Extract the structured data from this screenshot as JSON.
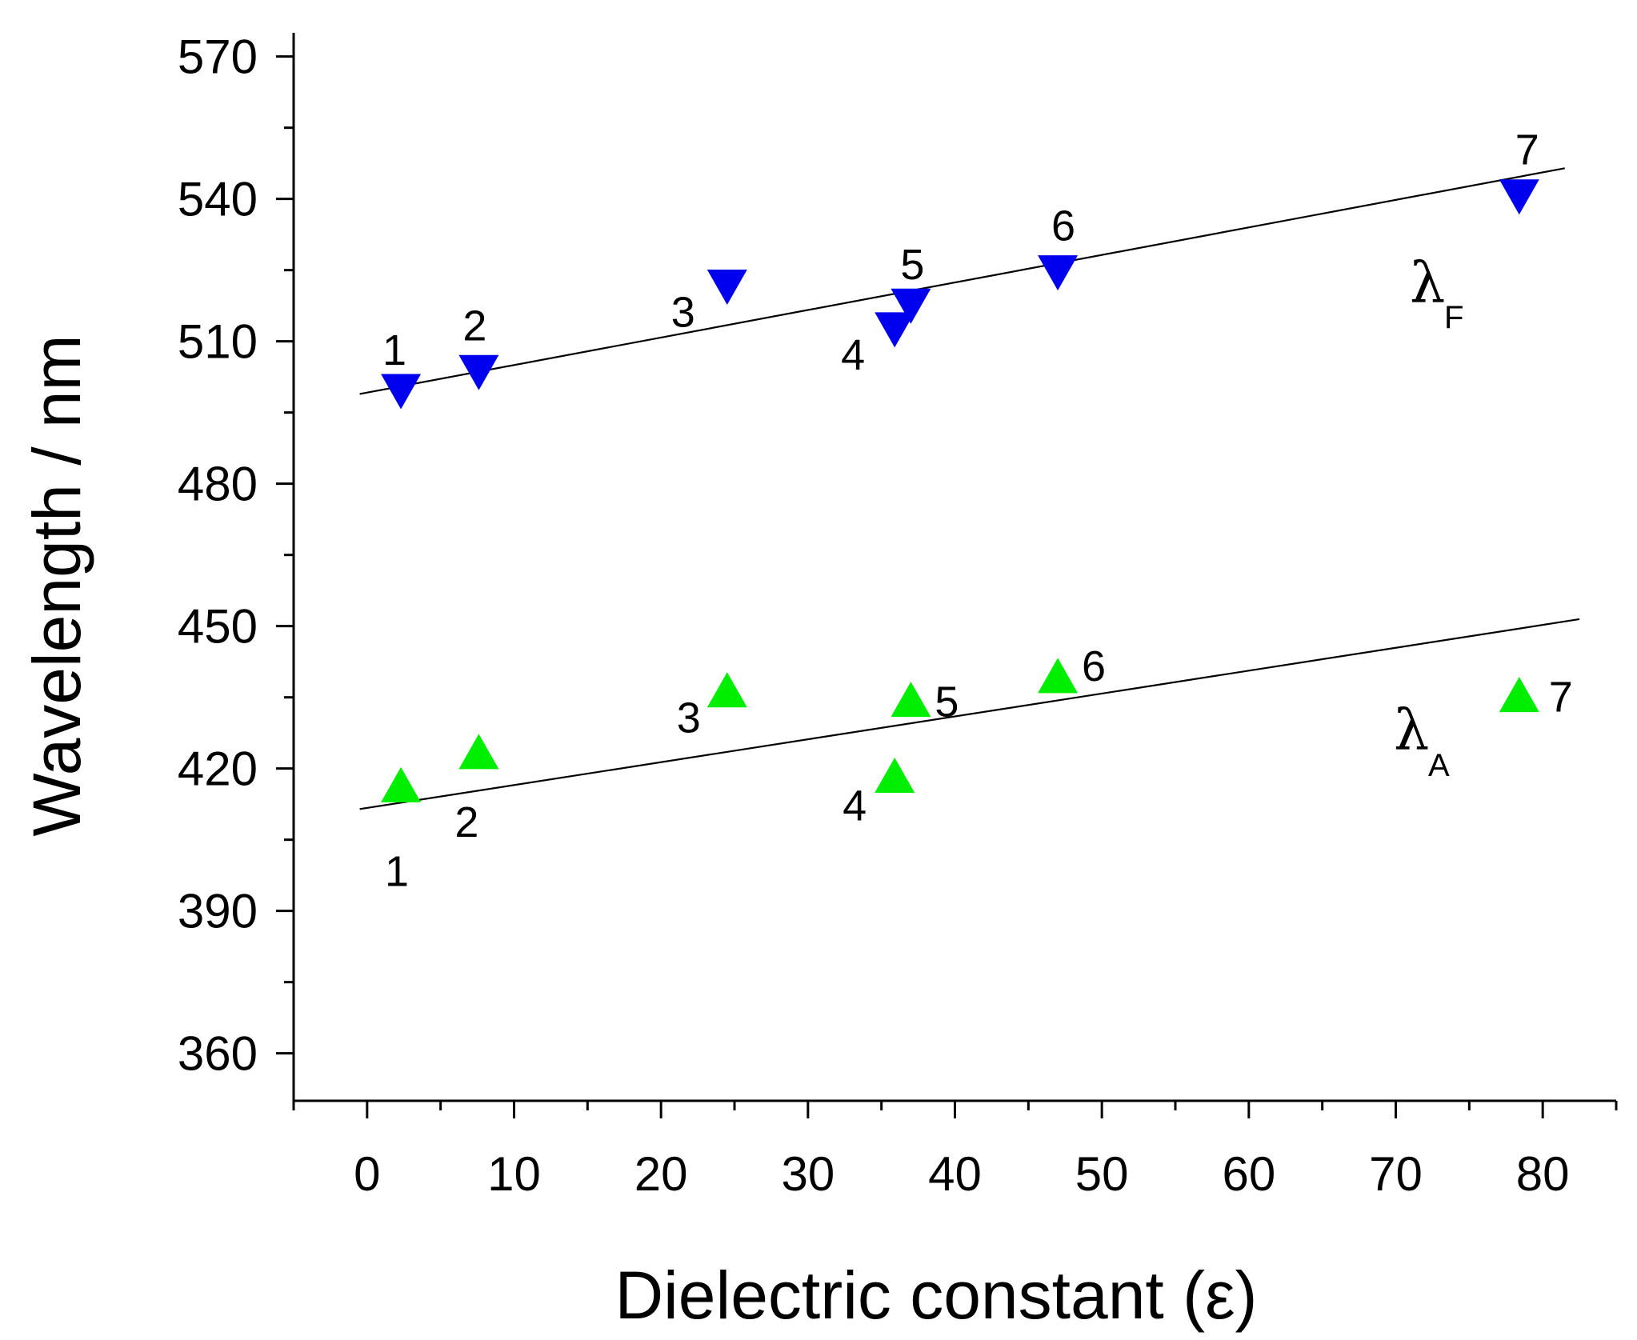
{
  "chart_data": {
    "type": "scatter",
    "title": "",
    "xlabel": "Dielectric constant (ε)",
    "ylabel": "Wavelength / nm",
    "xlim": [
      -5,
      85
    ],
    "ylim": [
      350,
      575
    ],
    "xticks": [
      0,
      10,
      20,
      30,
      40,
      50,
      60,
      70,
      80
    ],
    "xtick_labels": [
      "0",
      "10",
      "20",
      "30",
      "40",
      "50",
      "60",
      "70",
      "80"
    ],
    "yticks": [
      360,
      390,
      420,
      450,
      480,
      510,
      540,
      570
    ],
    "ytick_labels": [
      "360",
      "390",
      "420",
      "450",
      "480",
      "510",
      "540",
      "570"
    ],
    "grid": false,
    "series": [
      {
        "name": "λF",
        "symbol": "λ",
        "subscript": "F",
        "marker": "triangle-down",
        "color": "#0000ee",
        "x": [
          2.3,
          7.6,
          24.5,
          35.9,
          37.0,
          47.0,
          78.4
        ],
        "y": [
          500,
          504,
          522,
          513,
          518,
          525,
          541
        ],
        "point_labels": [
          "1",
          "2",
          "3",
          "4",
          "5",
          "6",
          "7"
        ],
        "fit": {
          "slope": 0.58,
          "intercept": 499.2,
          "x_range": [
            -0.5,
            81.5
          ]
        }
      },
      {
        "name": "λA",
        "symbol": "λ",
        "subscript": "A",
        "marker": "triangle-up",
        "color": "#00ee00",
        "x": [
          2.3,
          7.6,
          24.5,
          35.9,
          37.0,
          47.0,
          78.4
        ],
        "y": [
          416,
          423,
          436,
          418,
          434,
          439,
          435
        ],
        "point_labels": [
          "1",
          "2",
          "3",
          "4",
          "5",
          "6",
          "7"
        ],
        "fit": {
          "slope": 0.482,
          "intercept": 411.7,
          "x_range": [
            -0.5,
            82.5
          ]
        }
      }
    ]
  }
}
